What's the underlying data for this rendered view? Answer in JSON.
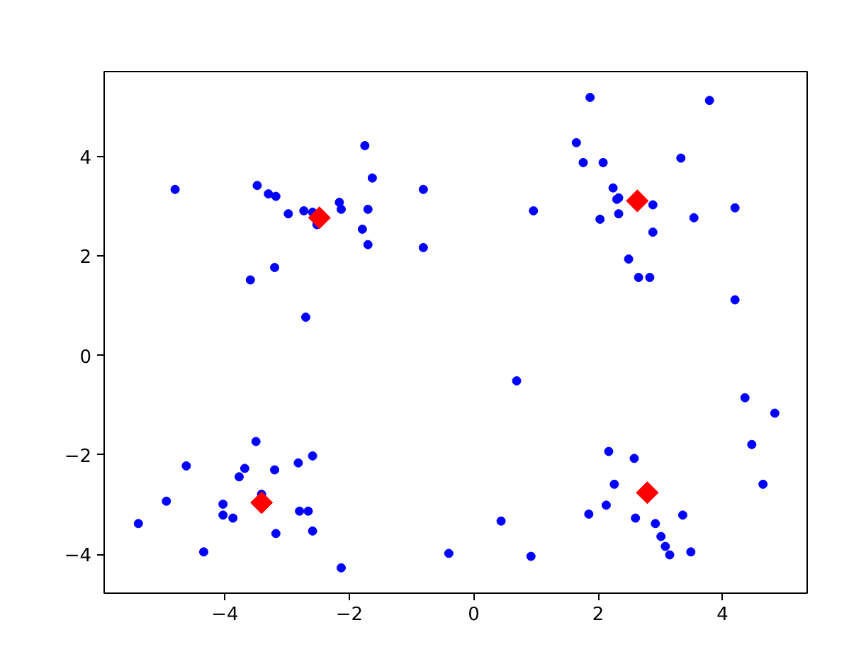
{
  "chart_data": {
    "type": "scatter",
    "series": [
      {
        "color": "#0000ff",
        "marker": "circle",
        "x": [
          -1.75,
          -1.63,
          -4.8,
          -3.48,
          -3.3,
          -3.18,
          -0.81,
          -2.16,
          -2.13,
          -1.7,
          -2.98,
          -2.73,
          -2.59,
          -2.52,
          -1.79,
          -1.7,
          -0.81,
          -3.2,
          -3.59,
          -2.7,
          1.87,
          3.79,
          1.65,
          1.76,
          2.08,
          3.33,
          2.24,
          2.33,
          2.3,
          2.88,
          0.96,
          2.03,
          2.33,
          3.54,
          4.2,
          2.88,
          2.49,
          2.65,
          2.83,
          4.2,
          -3.5,
          -2.59,
          -4.62,
          -3.68,
          -3.2,
          -2.82,
          -3.77,
          -4.94,
          -4.03,
          -4.03,
          -3.87,
          -2.8,
          -2.66,
          -3.18,
          -2.59,
          -5.39,
          -4.34,
          -2.13,
          -0.4,
          -3.41,
          0.69,
          4.36,
          4.84,
          4.47,
          4.65,
          2.17,
          2.58,
          2.26,
          2.13,
          1.85,
          2.6,
          2.92,
          3.36,
          3.01,
          3.08,
          3.15,
          3.49,
          0.44,
          0.92
        ],
        "values": [
          4.22,
          3.57,
          3.34,
          3.42,
          3.25,
          3.2,
          3.34,
          3.08,
          2.94,
          2.94,
          2.85,
          2.91,
          2.88,
          2.63,
          2.54,
          2.23,
          2.17,
          1.77,
          1.52,
          0.77,
          5.19,
          5.13,
          4.28,
          3.88,
          3.88,
          3.97,
          3.37,
          3.17,
          3.14,
          3.03,
          2.91,
          2.74,
          2.85,
          2.77,
          2.97,
          2.48,
          1.94,
          1.57,
          1.57,
          1.12,
          -1.73,
          -2.02,
          -2.22,
          -2.27,
          -2.3,
          -2.16,
          -2.44,
          -2.93,
          -2.99,
          -3.21,
          -3.27,
          -3.13,
          -3.13,
          -3.58,
          -3.53,
          -3.38,
          -3.95,
          -4.27,
          -3.98,
          -2.79,
          -0.51,
          -0.85,
          -1.16,
          -1.79,
          -2.59,
          -1.93,
          -2.07,
          -2.59,
          -3.01,
          -3.19,
          -3.27,
          -3.38,
          -3.21,
          -3.64,
          -3.84,
          -4.01,
          -3.95,
          -3.33,
          -4.04
        ]
      },
      {
        "color": "#ff0000",
        "marker": "diamond",
        "x": [
          -2.48,
          2.63,
          -3.41,
          2.79
        ],
        "values": [
          2.77,
          3.11,
          -2.96,
          -2.76
        ]
      }
    ],
    "xlim": [
      -5.94,
      5.36
    ],
    "ylim": [
      -4.78,
      5.71
    ],
    "xticks": [
      {
        "value": -4,
        "label": "−4"
      },
      {
        "value": -2,
        "label": "−2"
      },
      0,
      2,
      4
    ],
    "yticks": [
      {
        "value": -4,
        "label": "−4"
      },
      {
        "value": -2,
        "label": "−2"
      },
      0,
      2,
      4
    ]
  }
}
